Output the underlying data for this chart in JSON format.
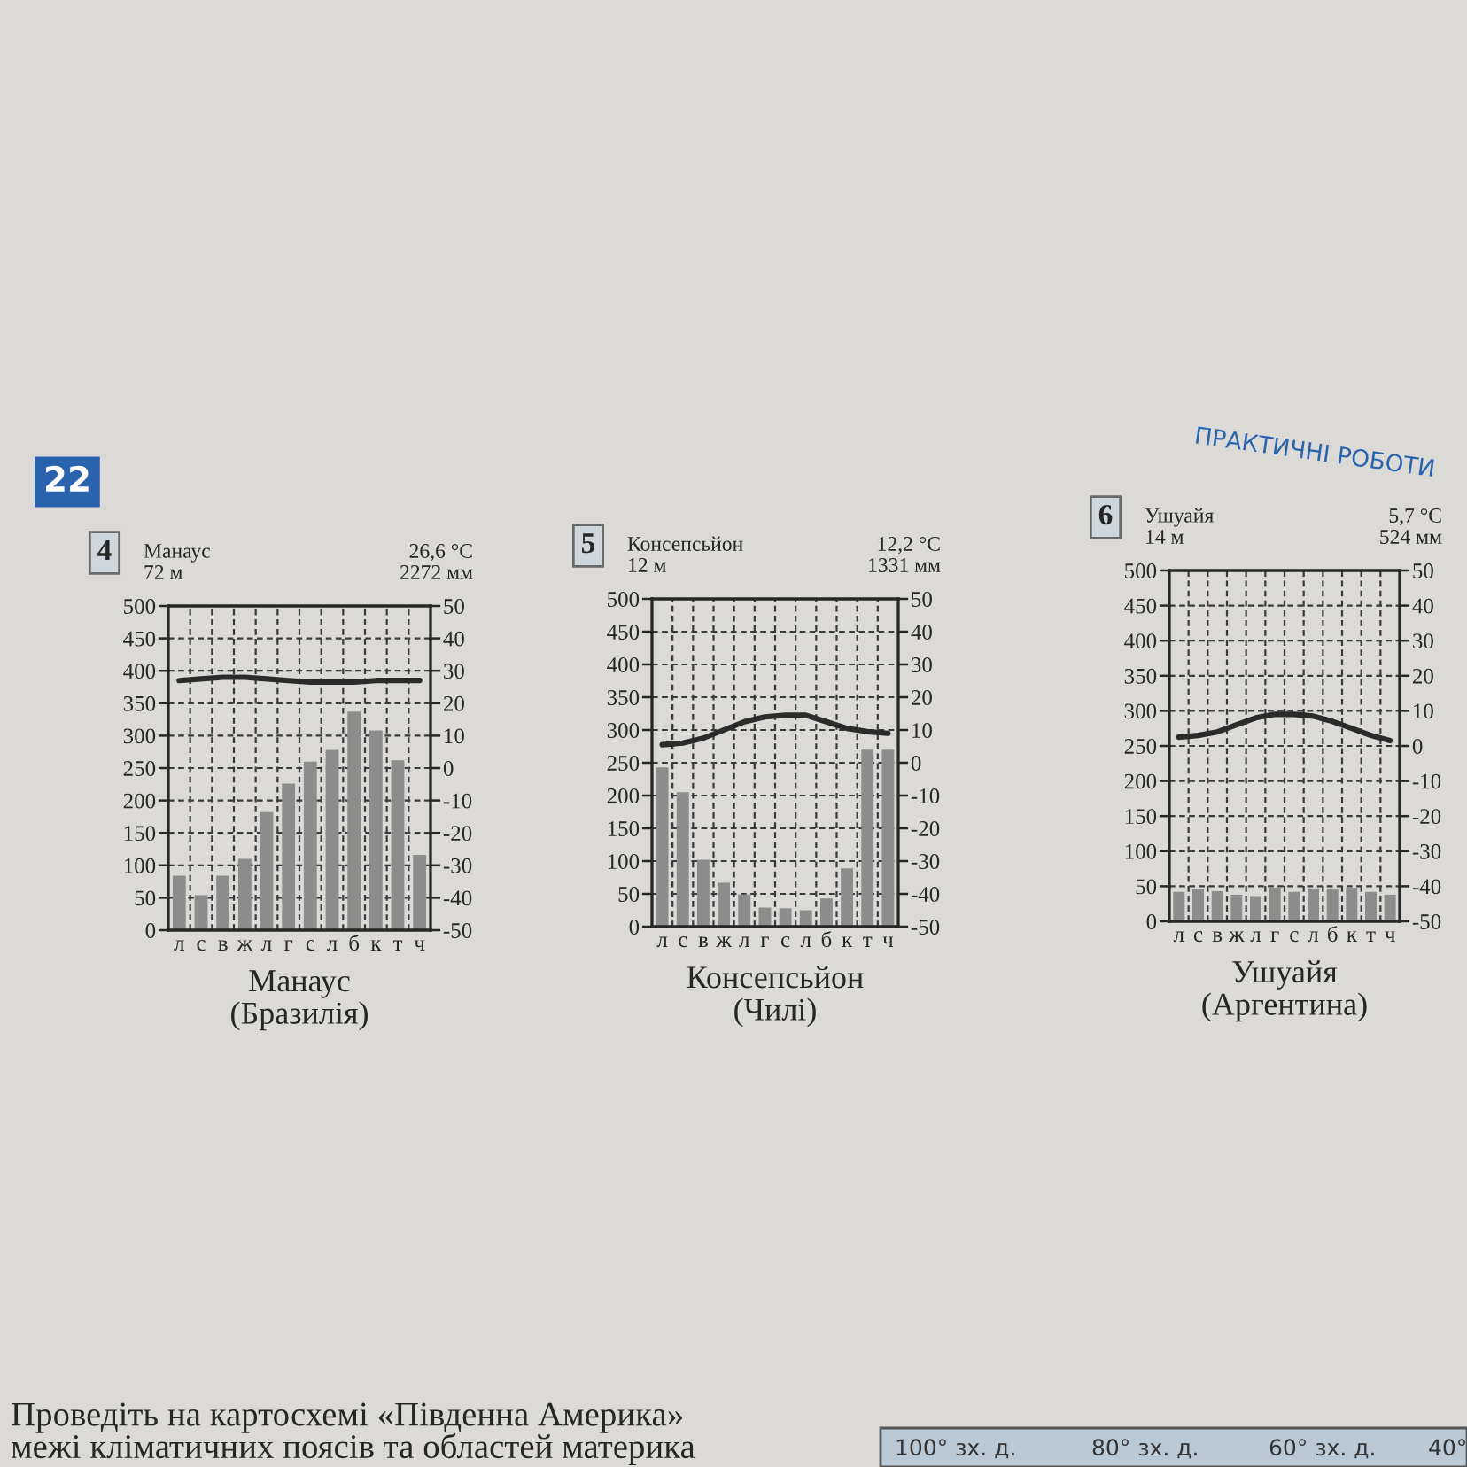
{
  "chart_data": [
    {
      "type": "bar",
      "title": "Манаус\n(Бразилія)",
      "categories": [
        "л",
        "с",
        "в",
        "ж",
        "л",
        "г",
        "с",
        "л",
        "б",
        "к",
        "т",
        "ч"
      ],
      "series": [
        {
          "color": "#8c8c8c",
          "values": [
            84,
            54,
            84,
            110,
            182,
            226,
            260,
            278,
            337,
            308,
            262,
            116
          ]
        },
        {
          "type": "line",
          "axis": "y2",
          "color": "#2b2b2b",
          "values": [
            27,
            27.5,
            28,
            28,
            27.5,
            27,
            26.5,
            26.5,
            26.5,
            27,
            27,
            27
          ]
        }
      ],
      "ylim": [
        0,
        500
      ],
      "yticks": [
        0,
        50,
        100,
        150,
        200,
        250,
        300,
        350,
        400,
        450,
        500
      ],
      "y2lim": [
        -50,
        50
      ],
      "y2ticks": [
        -50,
        -40,
        -30,
        -20,
        -10,
        0,
        10,
        20,
        30,
        40,
        50
      ],
      "grid": true,
      "annotations": [
        "4",
        "Манаус",
        "72 м",
        "26,6 °C",
        "2272 мм",
        "22",
        "ПРАКТИЧНІ РОБОТИ",
        "Проведіть на картосхемі «Південна Америка»",
        "межі кліматичних поясів та областей материка",
        "100° зх. д.",
        "80° зх. д.",
        "60° зх. д.",
        "40°"
      ]
    },
    {
      "type": "bar",
      "title": "Консепсьйон\n(Чилі)",
      "categories": [
        "л",
        "с",
        "в",
        "ж",
        "л",
        "г",
        "с",
        "л",
        "б",
        "к",
        "т",
        "ч"
      ],
      "series": [
        {
          "color": "#8c8c8c",
          "values": [
            243,
            205,
            102,
            67,
            49,
            29,
            28,
            25,
            43,
            89,
            270,
            270
          ]
        },
        {
          "type": "line",
          "axis": "y2",
          "color": "#2b2b2b",
          "values": [
            5.5,
            6,
            7.5,
            10,
            12.5,
            14,
            14.5,
            14.5,
            12.5,
            10.5,
            9.5,
            9
          ]
        }
      ],
      "ylim": [
        0,
        500
      ],
      "yticks": [
        0,
        50,
        100,
        150,
        200,
        250,
        300,
        350,
        400,
        450,
        500
      ],
      "y2lim": [
        -50,
        50
      ],
      "y2ticks": [
        -50,
        -40,
        -30,
        -20,
        -10,
        0,
        10,
        20,
        30,
        40,
        50
      ],
      "grid": true,
      "annotations": [
        "5",
        "Консепсьйон",
        "12 м",
        "12,2 °C",
        "1331 мм"
      ]
    },
    {
      "type": "bar",
      "title": "Ушуайя\n(Аргентина)",
      "categories": [
        "л",
        "с",
        "в",
        "ж",
        "л",
        "г",
        "с",
        "л",
        "б",
        "к",
        "т",
        "ч"
      ],
      "series": [
        {
          "color": "#8c8c8c",
          "values": [
            42,
            46,
            43,
            38,
            36,
            48,
            42,
            47,
            47,
            48,
            42,
            38
          ]
        },
        {
          "type": "line",
          "axis": "y2",
          "color": "#2b2b2b",
          "values": [
            2.5,
            3,
            4,
            6,
            8,
            9,
            9,
            8.5,
            7,
            5,
            3,
            1.5
          ]
        }
      ],
      "ylim": [
        0,
        500
      ],
      "yticks": [
        0,
        50,
        100,
        150,
        200,
        250,
        300,
        350,
        400,
        450,
        500
      ],
      "y2lim": [
        -50,
        50
      ],
      "y2ticks": [
        -50,
        -40,
        -30,
        -20,
        -10,
        0,
        10,
        20,
        30,
        40,
        50
      ],
      "grid": true,
      "annotations": [
        "6",
        "Ушуайя",
        "14 м",
        "5,7 °C",
        "524 мм"
      ]
    }
  ]
}
